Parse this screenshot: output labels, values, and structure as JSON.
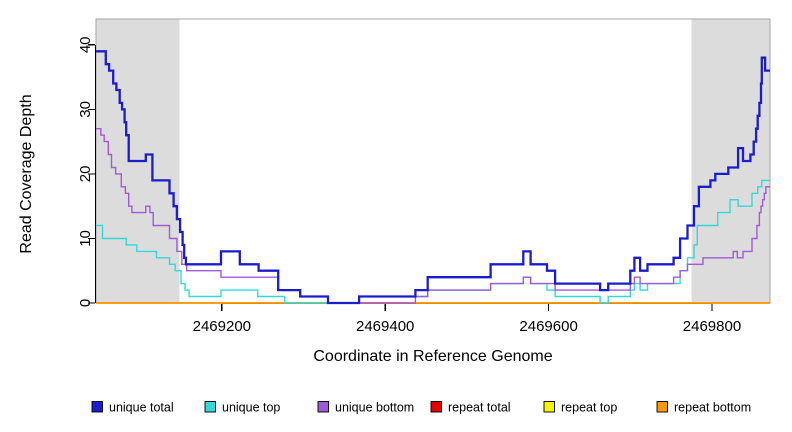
{
  "chart_data": {
    "type": "line",
    "line_style": "step-after",
    "title": "",
    "xlabel": "Coordinate in Reference Genome",
    "ylabel": "Read Coverage Depth",
    "xlim": [
      2469046,
      2469871
    ],
    "ylim": [
      0,
      44
    ],
    "x_ticks": [
      2469200,
      2469400,
      2469600,
      2469800
    ],
    "y_ticks": [
      0,
      10,
      20,
      30,
      40
    ],
    "grid": false,
    "legend_position": "bottom",
    "plot_bg": "#ffffff",
    "box_color": "#a6a6a6",
    "axis_color": "#000000",
    "shaded_regions": [
      {
        "x0": 2469046,
        "x1": 2469148,
        "color": "#dcdcdc"
      },
      {
        "x0": 2469775,
        "x1": 2469871,
        "color": "#dcdcdc"
      }
    ],
    "series": [
      {
        "id": "repeat-total",
        "name": "repeat total",
        "color": "#e60000",
        "width": 1.2,
        "points": [
          [
            2469046,
            0
          ]
        ]
      },
      {
        "id": "repeat-top",
        "name": "repeat top",
        "color": "#f5f500",
        "width": 1.2,
        "points": [
          [
            2469046,
            0
          ]
        ]
      },
      {
        "id": "repeat-bottom",
        "name": "repeat bottom",
        "color": "#ff9803",
        "width": 1.8,
        "points": [
          [
            2469046,
            0
          ]
        ]
      },
      {
        "id": "unique-top",
        "name": "unique top",
        "color": "#35d8d8",
        "width": 1.4,
        "points": [
          [
            2469046,
            12
          ],
          [
            2469054,
            10
          ],
          [
            2469083,
            9
          ],
          [
            2469096,
            8
          ],
          [
            2469120,
            7
          ],
          [
            2469136,
            6
          ],
          [
            2469143,
            5
          ],
          [
            2469150,
            3
          ],
          [
            2469155,
            2
          ],
          [
            2469160,
            1
          ],
          [
            2469199,
            2
          ],
          [
            2469244,
            1
          ],
          [
            2469277,
            0
          ],
          [
            2469368,
            1
          ],
          [
            2469452,
            2
          ],
          [
            2469529,
            3
          ],
          [
            2469569,
            4
          ],
          [
            2469578,
            3
          ],
          [
            2469598,
            2
          ],
          [
            2469608,
            1
          ],
          [
            2469663,
            0
          ],
          [
            2469673,
            1
          ],
          [
            2469700,
            2
          ],
          [
            2469705,
            3
          ],
          [
            2469712,
            2
          ],
          [
            2469721,
            3
          ],
          [
            2469761,
            5
          ],
          [
            2469770,
            7
          ],
          [
            2469778,
            9
          ],
          [
            2469782,
            12
          ],
          [
            2469807,
            14
          ],
          [
            2469822,
            16
          ],
          [
            2469832,
            15
          ],
          [
            2469849,
            17
          ],
          [
            2469856,
            18
          ],
          [
            2469861,
            19
          ]
        ]
      },
      {
        "id": "unique-bottom",
        "name": "unique bottom",
        "color": "#a05ad8",
        "width": 1.4,
        "points": [
          [
            2469046,
            27
          ],
          [
            2469052,
            26
          ],
          [
            2469056,
            25
          ],
          [
            2469061,
            23
          ],
          [
            2469065,
            21
          ],
          [
            2469070,
            20
          ],
          [
            2469077,
            18
          ],
          [
            2469082,
            17
          ],
          [
            2469086,
            15
          ],
          [
            2469090,
            14
          ],
          [
            2469107,
            15
          ],
          [
            2469112,
            14
          ],
          [
            2469116,
            12
          ],
          [
            2469136,
            10
          ],
          [
            2469145,
            8
          ],
          [
            2469151,
            6
          ],
          [
            2469157,
            5
          ],
          [
            2469199,
            4
          ],
          [
            2469269,
            2
          ],
          [
            2469296,
            1
          ],
          [
            2469330,
            0
          ],
          [
            2469437,
            1
          ],
          [
            2469452,
            2
          ],
          [
            2469529,
            3
          ],
          [
            2469569,
            4
          ],
          [
            2469578,
            3
          ],
          [
            2469608,
            2
          ],
          [
            2469673,
            2
          ],
          [
            2469700,
            3
          ],
          [
            2469705,
            4
          ],
          [
            2469712,
            3
          ],
          [
            2469753,
            4
          ],
          [
            2469761,
            5
          ],
          [
            2469770,
            6
          ],
          [
            2469789,
            7
          ],
          [
            2469826,
            8
          ],
          [
            2469831,
            7
          ],
          [
            2469838,
            8
          ],
          [
            2469849,
            10
          ],
          [
            2469855,
            12
          ],
          [
            2469858,
            14
          ],
          [
            2469860,
            15
          ],
          [
            2469862,
            16
          ],
          [
            2469864,
            17
          ],
          [
            2469866,
            18
          ]
        ]
      },
      {
        "id": "unique-total",
        "name": "unique total",
        "color": "#1c1ccd",
        "width": 2.3,
        "points": [
          [
            2469046,
            39
          ],
          [
            2469058,
            37
          ],
          [
            2469062,
            36
          ],
          [
            2469067,
            34
          ],
          [
            2469071,
            33
          ],
          [
            2469075,
            31
          ],
          [
            2469078,
            30
          ],
          [
            2469081,
            28
          ],
          [
            2469083,
            26
          ],
          [
            2469086,
            22
          ],
          [
            2469107,
            23
          ],
          [
            2469115,
            19
          ],
          [
            2469136,
            17
          ],
          [
            2469141,
            15
          ],
          [
            2469145,
            13
          ],
          [
            2469149,
            11
          ],
          [
            2469152,
            9
          ],
          [
            2469154,
            7
          ],
          [
            2469156,
            6
          ],
          [
            2469199,
            8
          ],
          [
            2469222,
            6
          ],
          [
            2469245,
            5
          ],
          [
            2469269,
            2
          ],
          [
            2469296,
            1
          ],
          [
            2469330,
            0
          ],
          [
            2469368,
            1
          ],
          [
            2469437,
            2
          ],
          [
            2469452,
            4
          ],
          [
            2469529,
            6
          ],
          [
            2469569,
            8
          ],
          [
            2469578,
            6
          ],
          [
            2469598,
            5
          ],
          [
            2469608,
            3
          ],
          [
            2469663,
            2
          ],
          [
            2469673,
            3
          ],
          [
            2469700,
            5
          ],
          [
            2469705,
            7
          ],
          [
            2469712,
            5
          ],
          [
            2469721,
            6
          ],
          [
            2469753,
            7
          ],
          [
            2469761,
            10
          ],
          [
            2469770,
            12
          ],
          [
            2469778,
            15
          ],
          [
            2469784,
            18
          ],
          [
            2469798,
            19
          ],
          [
            2469804,
            20
          ],
          [
            2469820,
            21
          ],
          [
            2469832,
            24
          ],
          [
            2469838,
            22
          ],
          [
            2469847,
            23
          ],
          [
            2469851,
            25
          ],
          [
            2469854,
            27
          ],
          [
            2469856,
            29
          ],
          [
            2469858,
            31
          ],
          [
            2469860,
            34
          ],
          [
            2469861,
            38
          ],
          [
            2469865,
            36
          ]
        ]
      }
    ]
  },
  "legend": {
    "entries": [
      {
        "label": "unique total",
        "color": "#1c1ccd"
      },
      {
        "label": "unique top",
        "color": "#35d8d8"
      },
      {
        "label": "unique bottom",
        "color": "#a05ad8"
      },
      {
        "label": "repeat total",
        "color": "#e60000"
      },
      {
        "label": "repeat top",
        "color": "#f5f500"
      },
      {
        "label": "repeat bottom",
        "color": "#ff9803"
      }
    ]
  }
}
